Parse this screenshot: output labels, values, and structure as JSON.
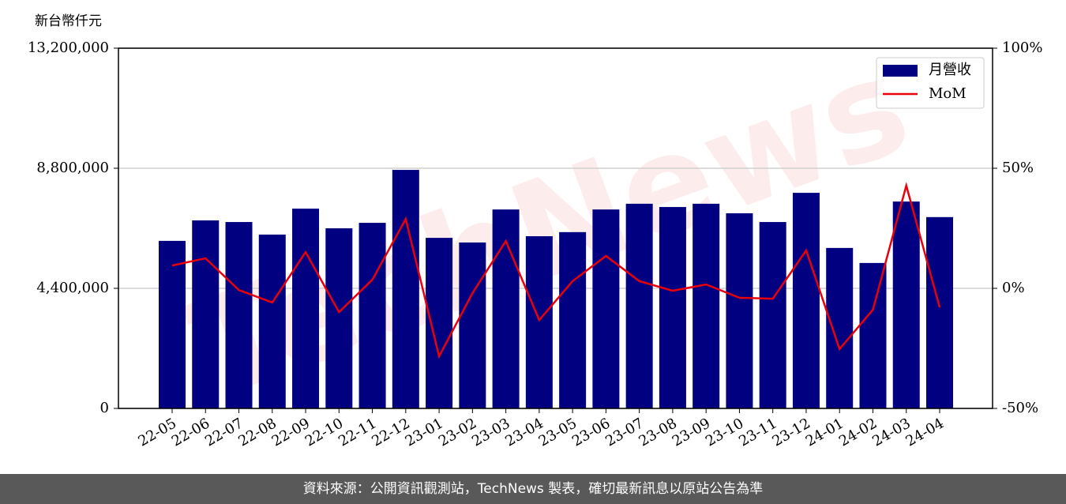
{
  "chart_data": {
    "type": "bar",
    "ylabel": "新台幣仟元",
    "watermark": "TechNews",
    "categories": [
      "22-05",
      "22-06",
      "22-07",
      "22-08",
      "22-09",
      "22-10",
      "22-11",
      "22-12",
      "23-01",
      "23-02",
      "23-03",
      "23-04",
      "23-05",
      "23-06",
      "23-07",
      "23-08",
      "23-09",
      "23-10",
      "23-11",
      "23-12",
      "24-01",
      "24-02",
      "24-03",
      "24-04"
    ],
    "series": [
      {
        "name": "月營收",
        "type": "bar",
        "color": "#000080",
        "values": [
          6140000,
          6890000,
          6830000,
          6370000,
          7320000,
          6600000,
          6800000,
          8740000,
          6250000,
          6080000,
          7290000,
          6310000,
          6460000,
          7290000,
          7500000,
          7380000,
          7500000,
          7150000,
          6830000,
          7900000,
          5880000,
          5330000,
          7580000,
          7010000
        ]
      },
      {
        "name": "MoM",
        "type": "line",
        "axis": "y2",
        "color": "#e8000b",
        "values": [
          9.5,
          12.5,
          -0.7,
          -5.9,
          15.1,
          -9.9,
          3.6,
          28.9,
          -28.3,
          -2.0,
          19.7,
          -13.2,
          3.0,
          13.5,
          3.0,
          -1.0,
          1.6,
          -3.9,
          -4.3,
          15.8,
          -25.3,
          -8.9,
          42.8,
          -7.9
        ]
      }
    ],
    "ylim": [
      0,
      13200000
    ],
    "yticks": [
      0,
      {
        "value": 4400000,
        "label": "4,400,000"
      },
      {
        "value": 8800000,
        "label": "8,800,000"
      },
      {
        "value": 13200000,
        "label": "13,200,000"
      }
    ],
    "y2lim": [
      -50,
      100
    ],
    "y2ticks": [
      {
        "value": -50,
        "label": "-50%"
      },
      {
        "value": 0,
        "label": "0%"
      },
      {
        "value": 50,
        "label": "50%"
      },
      {
        "value": 100,
        "label": "100%"
      }
    ],
    "grid": true,
    "legend": "upper right"
  },
  "footer": "資料來源：公開資訊觀測站，TechNews 製表，確切最新訊息以原站公告為準"
}
